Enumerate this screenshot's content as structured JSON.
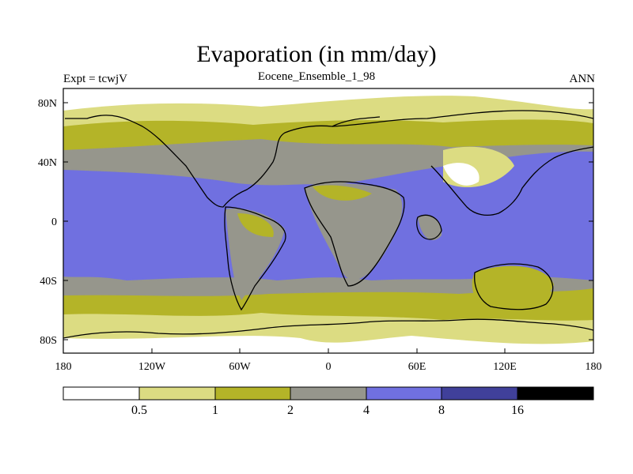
{
  "title": "Evaporation (in mm/day)",
  "subtitle": "Eocene_Ensemble_1_98",
  "left_label": "Expt = tcwjV",
  "right_label": "ANN",
  "lat_ticks": [
    "80N",
    "40N",
    "0",
    "40S",
    "80S"
  ],
  "lon_ticks": [
    "180",
    "120W",
    "60W",
    "0",
    "60E",
    "120E",
    "180"
  ],
  "colorbar": {
    "colors": [
      "#ffffff",
      "#dcdc82",
      "#b4b428",
      "#96968c",
      "#7070e0",
      "#40409a",
      "#000000"
    ],
    "labels": [
      "0.5",
      "1",
      "2",
      "4",
      "8",
      "16"
    ]
  },
  "colors": {
    "level_0": "#ffffff",
    "level_05": "#dcdc82",
    "level_1": "#b4b428",
    "level_2": "#96968c",
    "level_4": "#7070e0",
    "level_8": "#40409a",
    "coast": "#000000"
  }
}
